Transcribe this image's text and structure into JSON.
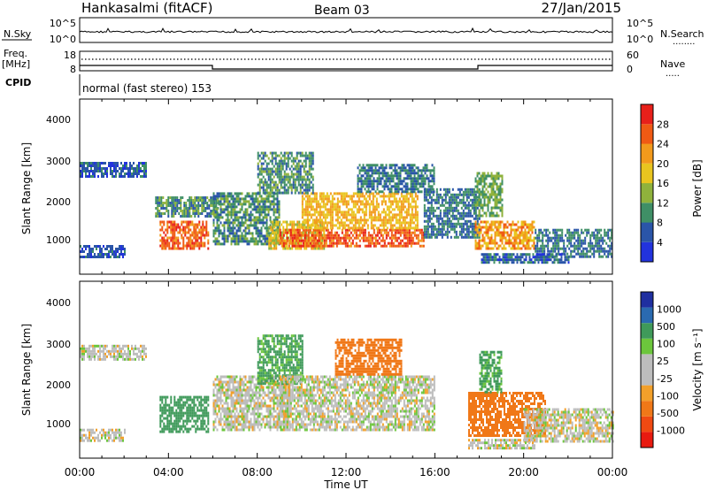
{
  "header": {
    "station": "Hankasalmi (fitACF)",
    "beam": "Beam 03",
    "date": "27/Jan/2015"
  },
  "noise_panel": {
    "left_label": "N.Sky",
    "right_label": "N.Search",
    "left_ticks": [
      "10^5",
      "10^0"
    ],
    "right_ticks": [
      "10^5",
      "10^0"
    ],
    "right_marker": "........"
  },
  "freq_panel": {
    "left_label_1": "Freq.",
    "left_label_2": "[MHz]",
    "right_label": "Nave",
    "left_ticks": [
      "18",
      "8"
    ],
    "right_ticks": [
      "60",
      "0"
    ],
    "right_marker": "....."
  },
  "cpid": {
    "label": "CPID",
    "program": "normal (fast stereo) 153"
  },
  "axes": {
    "ylabel": "Slant Range [km]",
    "yticks": [
      "4000",
      "3000",
      "2000",
      "1000"
    ],
    "xticks": [
      "00:00",
      "04:00",
      "08:00",
      "12:00",
      "16:00",
      "20:00",
      "00:00"
    ],
    "xlabel": "Time UT"
  },
  "colors": {
    "power": [
      "#2233dd",
      "#2a55a8",
      "#3f8f66",
      "#8fb23c",
      "#e9c51f",
      "#f29a1c",
      "#f05a14",
      "#e8201a"
    ],
    "velocity": [
      "#1f2fa0",
      "#2a6ab0",
      "#3f9a5a",
      "#6cc63c",
      "#bdbdbd",
      "#bdbdbd",
      "#f2a02a",
      "#f07818",
      "#f04a12",
      "#e81a10"
    ]
  },
  "chart_data": [
    {
      "type": "heatmap",
      "title": "Power [dB]",
      "colorbar_label": "Power [dB]",
      "colorbar_ticks": [
        "28",
        "24",
        "20",
        "16",
        "12",
        "8",
        "4"
      ],
      "colorbar_range": [
        0,
        32
      ],
      "x_range_hours": [
        0,
        24
      ],
      "y_range_km": [
        180,
        4500
      ],
      "regions": [
        {
          "t": [
            0.0,
            3.0
          ],
          "r": [
            2600,
            2950
          ],
          "value": 6
        },
        {
          "t": [
            0.0,
            2.0
          ],
          "r": [
            600,
            900
          ],
          "value": 5
        },
        {
          "t": [
            3.6,
            5.8
          ],
          "r": [
            800,
            1500
          ],
          "value": 26
        },
        {
          "t": [
            3.4,
            6.2
          ],
          "r": [
            1600,
            2100
          ],
          "value": 10
        },
        {
          "t": [
            6.0,
            9.0
          ],
          "r": [
            900,
            2200
          ],
          "value": 10
        },
        {
          "t": [
            8.5,
            11.0
          ],
          "r": [
            800,
            1500
          ],
          "value": 18
        },
        {
          "t": [
            9.0,
            15.5
          ],
          "r": [
            850,
            1300
          ],
          "value": 26
        },
        {
          "t": [
            10.0,
            15.2
          ],
          "r": [
            1300,
            2200
          ],
          "value": 20
        },
        {
          "t": [
            8.0,
            10.5
          ],
          "r": [
            2200,
            3200
          ],
          "value": 10
        },
        {
          "t": [
            12.5,
            16.0
          ],
          "r": [
            2200,
            2900
          ],
          "value": 8
        },
        {
          "t": [
            15.5,
            18.0
          ],
          "r": [
            1100,
            2300
          ],
          "value": 8
        },
        {
          "t": [
            17.8,
            20.5
          ],
          "r": [
            800,
            1500
          ],
          "value": 22
        },
        {
          "t": [
            17.8,
            19.0
          ],
          "r": [
            1600,
            2700
          ],
          "value": 12
        },
        {
          "t": [
            20.5,
            24.0
          ],
          "r": [
            600,
            1300
          ],
          "value": 8
        },
        {
          "t": [
            18.0,
            22.0
          ],
          "r": [
            450,
            700
          ],
          "value": 6
        }
      ]
    },
    {
      "type": "heatmap",
      "title": "Velocity [m s-1]",
      "colorbar_label": "Velocity [m s⁻¹]",
      "colorbar_ticks": [
        "1000",
        "500",
        "100",
        "25",
        "-25",
        "-100",
        "-500",
        "-1000"
      ],
      "colorbar_range": [
        -1000,
        1000
      ],
      "x_range_hours": [
        0,
        24
      ],
      "y_range_km": [
        180,
        4500
      ],
      "regions": [
        {
          "t": [
            0.0,
            3.0
          ],
          "r": [
            2600,
            2950
          ],
          "value": 0
        },
        {
          "t": [
            0.0,
            2.0
          ],
          "r": [
            600,
            900
          ],
          "value": 0
        },
        {
          "t": [
            3.6,
            5.8
          ],
          "r": [
            800,
            1700
          ],
          "value": 150
        },
        {
          "t": [
            6.0,
            9.5
          ],
          "r": [
            900,
            2200
          ],
          "value": 0
        },
        {
          "t": [
            8.0,
            10.0
          ],
          "r": [
            2000,
            3200
          ],
          "value": 120
        },
        {
          "t": [
            9.0,
            16.0
          ],
          "r": [
            900,
            2200
          ],
          "value": 0
        },
        {
          "t": [
            11.5,
            14.5
          ],
          "r": [
            2200,
            3100
          ],
          "value": -150
        },
        {
          "t": [
            17.5,
            21.0
          ],
          "r": [
            700,
            1800
          ],
          "value": -300
        },
        {
          "t": [
            18.0,
            19.0
          ],
          "r": [
            1800,
            2800
          ],
          "value": 120
        },
        {
          "t": [
            20.0,
            24.0
          ],
          "r": [
            600,
            1400
          ],
          "value": 0
        },
        {
          "t": [
            17.5,
            20.5
          ],
          "r": [
            450,
            650
          ],
          "value": 0
        }
      ]
    }
  ]
}
